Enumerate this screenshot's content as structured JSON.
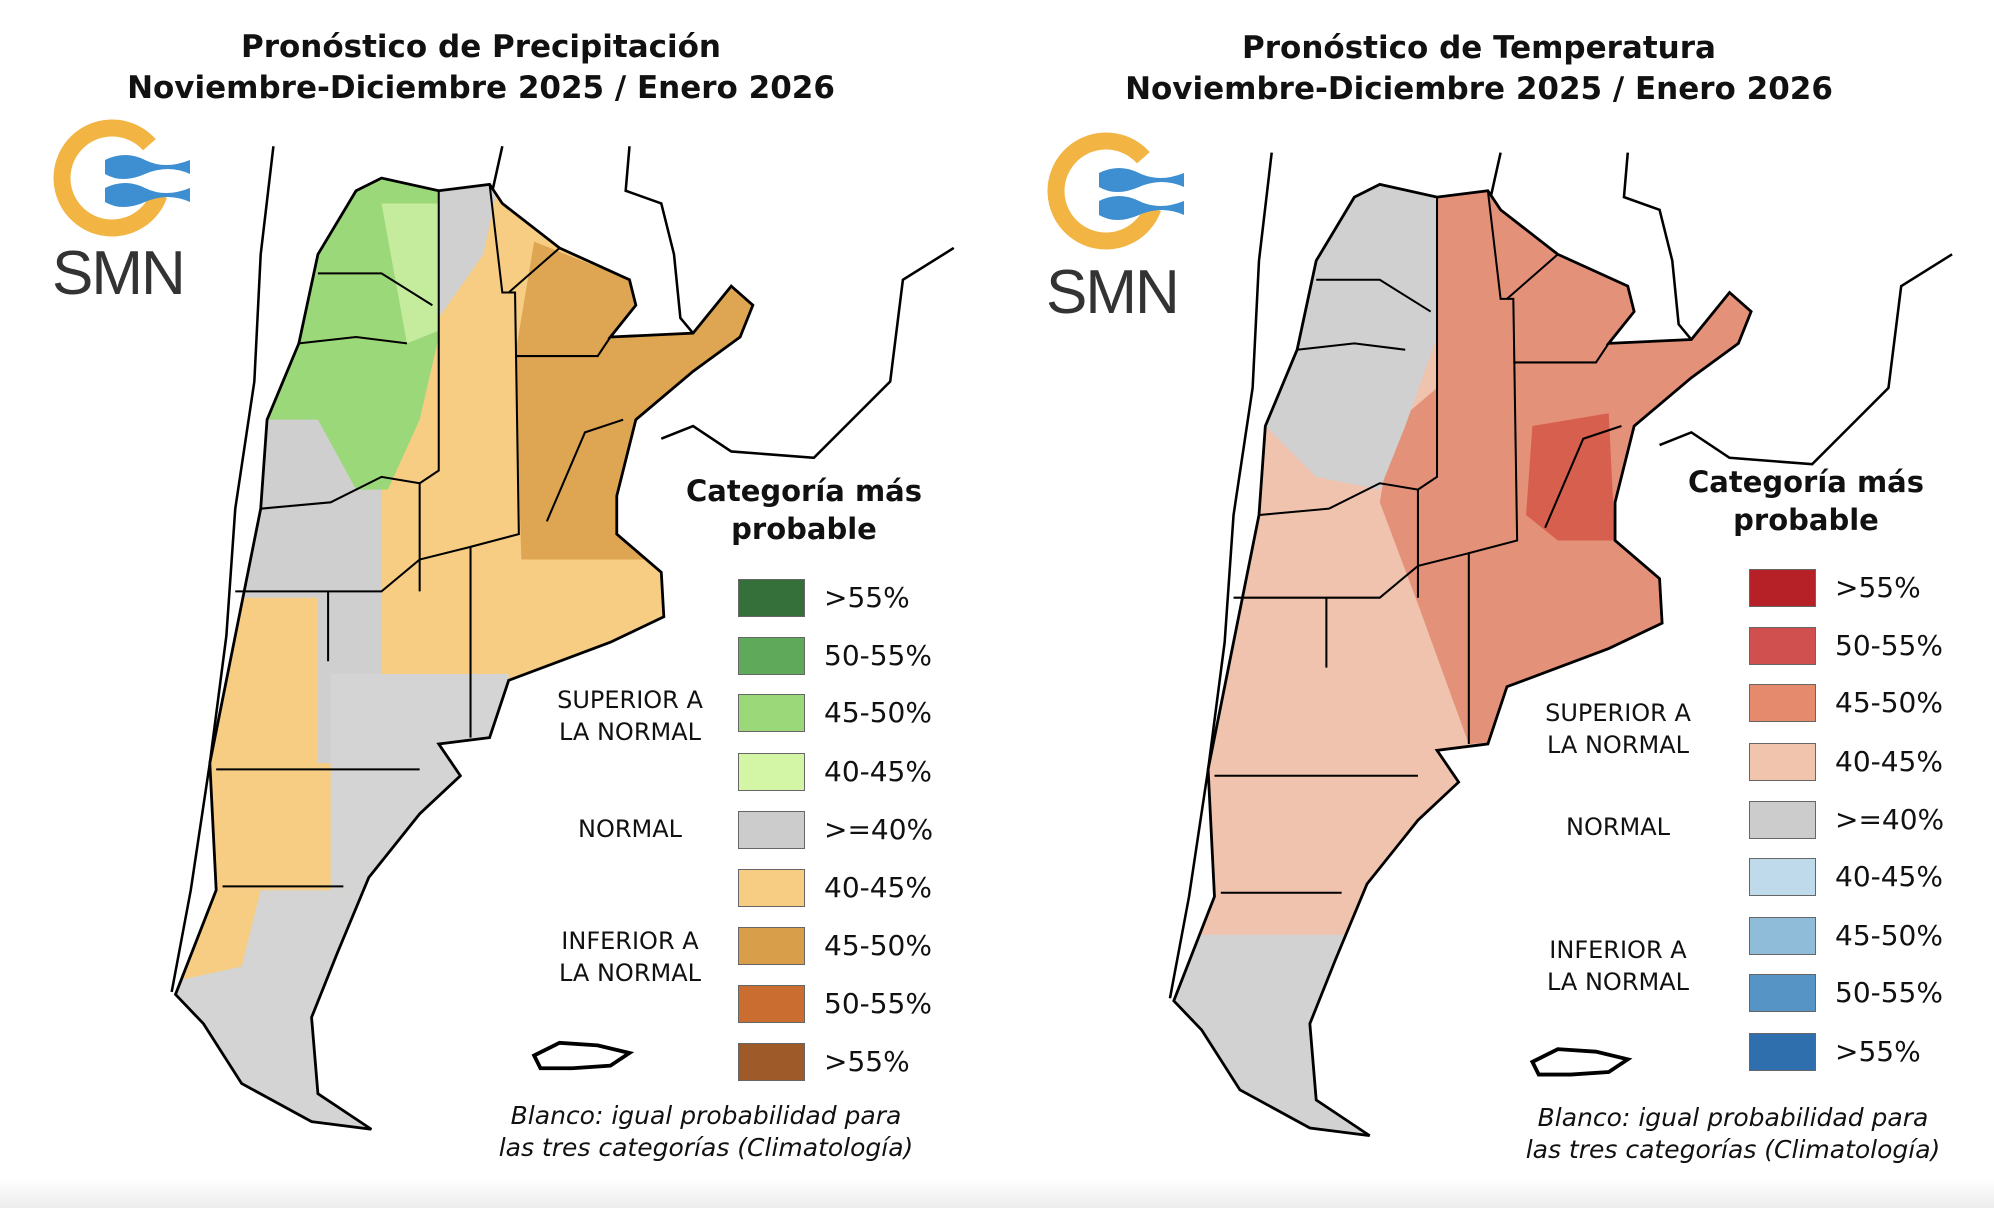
{
  "precipitation": {
    "title_line1": "Pronóstico de Precipitación",
    "title_line2": "Noviembre-Diciembre 2025 / Enero 2026",
    "logo_text": "SMN",
    "legend": {
      "title_line1": "Categoría más",
      "title_line2": "probable",
      "categories": {
        "above": [
          "SUPERIOR A",
          "LA NORMAL"
        ],
        "normal": "NORMAL",
        "below": [
          "INFERIOR A",
          "LA NORMAL"
        ]
      },
      "items": [
        {
          "label": ">55%",
          "color": "#356f3a"
        },
        {
          "label": "50-55%",
          "color": "#5fa95a"
        },
        {
          "label": "45-50%",
          "color": "#9bd87a"
        },
        {
          "label": "40-45%",
          "color": "#d2f5a6"
        },
        {
          "label": ">=40%",
          "color": "#cccccc"
        },
        {
          "label": "40-45%",
          "color": "#f6cd83"
        },
        {
          "label": "45-50%",
          "color": "#d99e4a"
        },
        {
          "label": "50-55%",
          "color": "#c96d30"
        },
        {
          "label": ">55%",
          "color": "#9e5a28"
        }
      ],
      "footnote_line1": "Blanco: igual probabilidad para",
      "footnote_line2": "las tres categorías (Climatología)"
    }
  },
  "temperature": {
    "title_line1": "Pronóstico de Temperatura",
    "title_line2": "Noviembre-Diciembre 2025 / Enero 2026",
    "logo_text": "SMN",
    "legend": {
      "title_line1": "Categoría más",
      "title_line2": "probable",
      "categories": {
        "above": [
          "SUPERIOR A",
          "LA NORMAL"
        ],
        "normal": "NORMAL",
        "below": [
          "INFERIOR A",
          "LA NORMAL"
        ]
      },
      "items": [
        {
          "label": ">55%",
          "color": "#b52127"
        },
        {
          "label": "50-55%",
          "color": "#d05050"
        },
        {
          "label": "45-50%",
          "color": "#e58a6c"
        },
        {
          "label": "40-45%",
          "color": "#f0c4ad"
        },
        {
          "label": ">=40%",
          "color": "#cccccc"
        },
        {
          "label": "40-45%",
          "color": "#bfdaea"
        },
        {
          "label": "45-50%",
          "color": "#8fbcd9"
        },
        {
          "label": "50-55%",
          "color": "#5594c5"
        },
        {
          "label": ">55%",
          "color": "#2f6fad"
        }
      ],
      "footnote_line1": "Blanco: igual probabilidad para",
      "footnote_line2": "las tres categorías (Climatología)"
    }
  },
  "logo_colors": {
    "ring": "#f2b544",
    "waves": "#3d8fd1"
  }
}
